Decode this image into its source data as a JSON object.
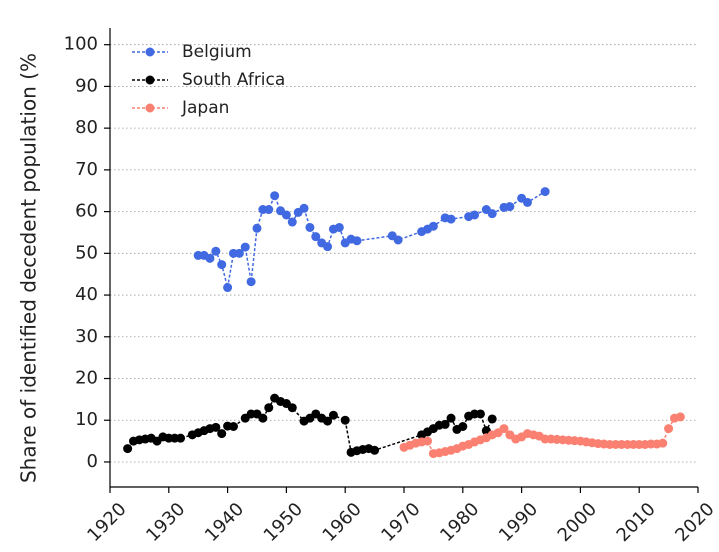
{
  "chart_data": {
    "type": "line",
    "ylabel": "Share of identified decedent population (%",
    "xlim": [
      1920,
      2020
    ],
    "xticks": [
      1920,
      1930,
      1940,
      1950,
      1960,
      1970,
      1980,
      1990,
      2000,
      2010,
      2020
    ],
    "ylim": [
      -6,
      104
    ],
    "yticks": [
      0,
      10,
      20,
      30,
      40,
      50,
      60,
      70,
      80,
      90,
      100
    ],
    "grid": true,
    "legend": "upper left",
    "series": [
      {
        "name": "Belgium",
        "color": "#4169e1",
        "x": [
          1935,
          1936,
          1937,
          1938,
          1939,
          1940,
          1941,
          1942,
          1943,
          1944,
          1945,
          1946,
          1947,
          1948,
          1949,
          1950,
          1951,
          1952,
          1953,
          1954,
          1955,
          1956,
          1957,
          1958,
          1959,
          1960,
          1961,
          1962,
          1968,
          1969,
          1973,
          1974,
          1975,
          1977,
          1978,
          1981,
          1982,
          1984,
          1985,
          1987,
          1988,
          1990,
          1991,
          1994
        ],
        "values": [
          49.5,
          49.5,
          48.8,
          50.5,
          47.3,
          41.8,
          50,
          50,
          51.5,
          43.2,
          56,
          60.5,
          60.5,
          63.8,
          60.2,
          59.2,
          57.5,
          59.8,
          60.8,
          56.2,
          54,
          52.5,
          51.6,
          55.8,
          56.2,
          52.5,
          53.4,
          53,
          54.2,
          53.2,
          55.2,
          55.8,
          56.5,
          58.5,
          58.2,
          58.8,
          59.2,
          60.5,
          59.5,
          61,
          61.2,
          63.2,
          62.2,
          64.8
        ]
      },
      {
        "name": "South Africa",
        "color": "#000000",
        "x": [
          1923,
          1924,
          1925,
          1926,
          1927,
          1928,
          1929,
          1930,
          1931,
          1932,
          1934,
          1935,
          1936,
          1937,
          1938,
          1939,
          1940,
          1941,
          1943,
          1944,
          1945,
          1946,
          1947,
          1948,
          1949,
          1950,
          1951,
          1953,
          1954,
          1955,
          1956,
          1957,
          1958,
          1960,
          1961,
          1962,
          1963,
          1964,
          1965,
          1973,
          1974,
          1975,
          1976,
          1977,
          1978,
          1979,
          1980,
          1981,
          1982,
          1983,
          1984,
          1985
        ],
        "values": [
          3.2,
          5,
          5.3,
          5.5,
          5.7,
          5,
          6,
          5.7,
          5.7,
          5.7,
          6.5,
          7,
          7.5,
          8,
          8.3,
          6.8,
          8.6,
          8.5,
          10.5,
          11.5,
          11.5,
          10.5,
          13,
          15.3,
          14.5,
          14,
          13,
          9.8,
          10.5,
          11.5,
          10.5,
          9.8,
          11.2,
          10,
          2.3,
          2.7,
          3,
          3.2,
          2.8,
          6.5,
          7.2,
          8,
          8.8,
          9,
          10.5,
          7.8,
          8.5,
          11,
          11.5,
          11.5,
          7.5,
          10.3
        ]
      },
      {
        "name": "Japan",
        "color": "#fa8072",
        "x": [
          1970,
          1971,
          1972,
          1973,
          1974,
          1975,
          1976,
          1977,
          1978,
          1979,
          1980,
          1981,
          1982,
          1983,
          1984,
          1985,
          1986,
          1987,
          1988,
          1989,
          1990,
          1991,
          1992,
          1993,
          1994,
          1995,
          1996,
          1997,
          1998,
          1999,
          2000,
          2001,
          2002,
          2003,
          2004,
          2005,
          2006,
          2007,
          2008,
          2009,
          2010,
          2011,
          2012,
          2013,
          2014,
          2015,
          2016,
          2017
        ],
        "values": [
          3.5,
          4,
          4.5,
          4.8,
          5,
          2,
          2.2,
          2.5,
          2.8,
          3.2,
          3.8,
          4.2,
          4.8,
          5.3,
          5.8,
          6.5,
          7,
          8,
          6.5,
          5.5,
          6,
          6.8,
          6.5,
          6.2,
          5.5,
          5.5,
          5.4,
          5.3,
          5.2,
          5.1,
          5,
          4.8,
          4.6,
          4.4,
          4.3,
          4.2,
          4.2,
          4.2,
          4.2,
          4.2,
          4.2,
          4.2,
          4.3,
          4.3,
          4.5,
          8,
          10.5,
          10.8
        ]
      }
    ]
  }
}
